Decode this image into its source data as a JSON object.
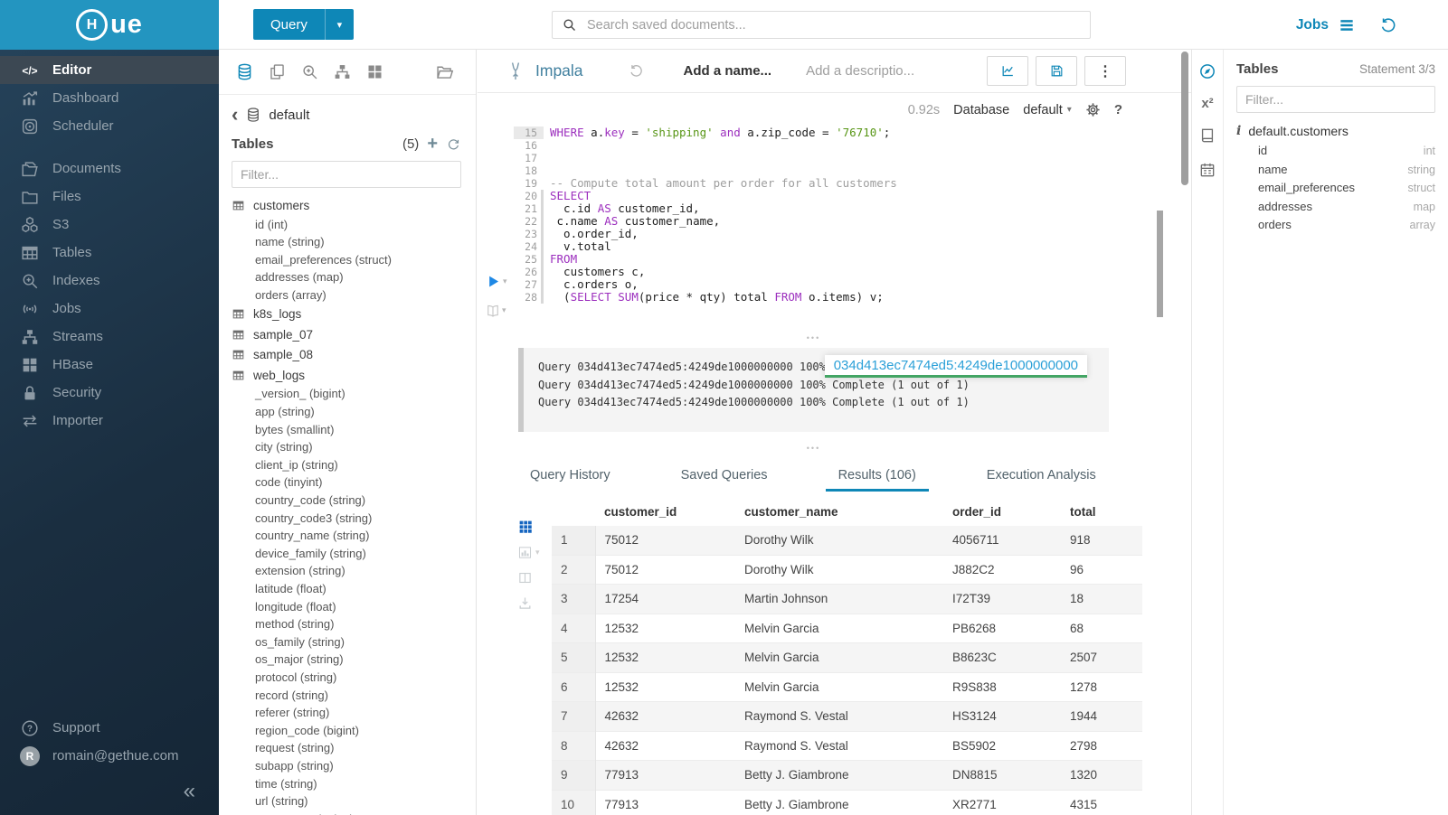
{
  "colors": {
    "accent": "#0e87b7",
    "logo_bar": "#2395c0",
    "sidebar_dark": "#1a2e40",
    "keyword": "#9c2fbe",
    "string": "#589616",
    "comment": "#9e9e9e",
    "link_blue": "#2ba0d8",
    "link_underline_green": "#43a564",
    "execute_blue": "#1e88e5"
  },
  "topbar": {
    "query_button": "Query",
    "search_placeholder": "Search saved documents...",
    "jobs_label": "Jobs"
  },
  "sidebar": {
    "items": [
      {
        "label": "Editor",
        "icon": "code",
        "active": true
      },
      {
        "label": "Dashboard",
        "icon": "dashboard"
      },
      {
        "label": "Scheduler",
        "icon": "scheduler"
      },
      {
        "label": "Documents",
        "icon": "documents",
        "gap": true
      },
      {
        "label": "Files",
        "icon": "folder"
      },
      {
        "label": "S3",
        "icon": "cubes"
      },
      {
        "label": "Tables",
        "icon": "tablegrid"
      },
      {
        "label": "Indexes",
        "icon": "searchplus"
      },
      {
        "label": "Jobs",
        "icon": "signal"
      },
      {
        "label": "Streams",
        "icon": "sitemap"
      },
      {
        "label": "HBase",
        "icon": "squares"
      },
      {
        "label": "Security",
        "icon": "lock"
      },
      {
        "label": "Importer",
        "icon": "swap"
      }
    ],
    "support_label": "Support",
    "user_email": "romain@gethue.com",
    "user_initial": "R"
  },
  "left_assist": {
    "database": "default",
    "tables_label": "Tables",
    "tables_count": "(5)",
    "filter_placeholder": "Filter...",
    "tables": [
      {
        "name": "customers",
        "columns": [
          "id (int)",
          "name (string)",
          "email_preferences (struct)",
          "addresses (map)",
          "orders (array)"
        ]
      },
      {
        "name": "k8s_logs",
        "columns": []
      },
      {
        "name": "sample_07",
        "columns": []
      },
      {
        "name": "sample_08",
        "columns": []
      },
      {
        "name": "web_logs",
        "columns": [
          "_version_ (bigint)",
          "app (string)",
          "bytes (smallint)",
          "city (string)",
          "client_ip (string)",
          "code (tinyint)",
          "country_code (string)",
          "country_code3 (string)",
          "country_name (string)",
          "device_family (string)",
          "extension (string)",
          "latitude (float)",
          "longitude (float)",
          "method (string)",
          "os_family (string)",
          "os_major (string)",
          "protocol (string)",
          "record (string)",
          "referer (string)",
          "region_code (bigint)",
          "request (string)",
          "subapp (string)",
          "time (string)",
          "url (string)",
          "user_agent (string)"
        ]
      }
    ]
  },
  "editor": {
    "engine": "Impala",
    "name_placeholder": "Add a name...",
    "description_placeholder": "Add a descriptio...",
    "exec_time": "0.92s",
    "database_label": "Database",
    "database_value": "default",
    "code_lines": [
      {
        "n": 15,
        "active": true,
        "segs": [
          [
            "kw",
            "WHERE"
          ],
          [
            "id",
            " a."
          ],
          [
            "kw",
            "key"
          ],
          [
            "id",
            " = "
          ],
          [
            "str",
            "'shipping'"
          ],
          [
            "id",
            " "
          ],
          [
            "kw",
            "and"
          ],
          [
            "id",
            " a.zip_code = "
          ],
          [
            "str",
            "'76710'"
          ],
          [
            "id",
            ";"
          ]
        ]
      },
      {
        "n": 16,
        "segs": []
      },
      {
        "n": 17,
        "segs": []
      },
      {
        "n": 18,
        "segs": []
      },
      {
        "n": 19,
        "segs": [
          [
            "com",
            "-- Compute total amount per order for all customers"
          ]
        ]
      },
      {
        "n": 20,
        "stmt": true,
        "segs": [
          [
            "kw",
            "SELECT"
          ]
        ]
      },
      {
        "n": 21,
        "stmt": true,
        "segs": [
          [
            "id",
            "  c.id "
          ],
          [
            "kw",
            "AS"
          ],
          [
            "id",
            " customer_id,"
          ]
        ]
      },
      {
        "n": 22,
        "stmt": true,
        "segs": [
          [
            "id",
            " c.name "
          ],
          [
            "kw",
            "AS"
          ],
          [
            "id",
            " customer_name,"
          ]
        ]
      },
      {
        "n": 23,
        "stmt": true,
        "segs": [
          [
            "id",
            "  o.order_id,"
          ]
        ]
      },
      {
        "n": 24,
        "stmt": true,
        "segs": [
          [
            "id",
            "  v.total"
          ]
        ]
      },
      {
        "n": 25,
        "stmt": true,
        "segs": [
          [
            "kw",
            "FROM"
          ]
        ]
      },
      {
        "n": 26,
        "stmt": true,
        "segs": [
          [
            "id",
            "  customers c,"
          ]
        ]
      },
      {
        "n": 27,
        "stmt": true,
        "segs": [
          [
            "id",
            "  c.orders o,"
          ]
        ]
      },
      {
        "n": 28,
        "stmt": true,
        "segs": [
          [
            "id",
            "  ("
          ],
          [
            "kw",
            "SELECT"
          ],
          [
            "id",
            " "
          ],
          [
            "kw",
            "SUM"
          ],
          [
            "id",
            "(price * qty) total "
          ],
          [
            "kw",
            "FROM"
          ],
          [
            "id",
            " o.items) v;"
          ]
        ]
      }
    ]
  },
  "log": {
    "lines": [
      "Query 034d413ec7474ed5:4249de1000000000 100% Complete (1 out of 1)",
      "Query 034d413ec7474ed5:4249de1000000000 100% Complete (1 out of 1)",
      "Query 034d413ec7474ed5:4249de1000000000 100% Complete (1 out of 1)"
    ],
    "query_id_link": "034d413ec7474ed5:4249de1000000000"
  },
  "tabs": [
    {
      "label": "Query History"
    },
    {
      "label": "Saved Queries"
    },
    {
      "label": "Results (106)",
      "active": true
    },
    {
      "label": "Execution Analysis"
    }
  ],
  "results": {
    "columns": [
      "customer_id",
      "customer_name",
      "order_id",
      "total"
    ],
    "rows": [
      [
        "75012",
        "Dorothy Wilk",
        "4056711",
        "918"
      ],
      [
        "75012",
        "Dorothy Wilk",
        "J882C2",
        "96"
      ],
      [
        "17254",
        "Martin Johnson",
        "I72T39",
        "18"
      ],
      [
        "12532",
        "Melvin Garcia",
        "PB6268",
        "68"
      ],
      [
        "12532",
        "Melvin Garcia",
        "B8623C",
        "2507"
      ],
      [
        "12532",
        "Melvin Garcia",
        "R9S838",
        "1278"
      ],
      [
        "42632",
        "Raymond S. Vestal",
        "HS3124",
        "1944"
      ],
      [
        "42632",
        "Raymond S. Vestal",
        "BS5902",
        "2798"
      ],
      [
        "77913",
        "Betty J. Giambrone",
        "DN8815",
        "1320"
      ],
      [
        "77913",
        "Betty J. Giambrone",
        "XR2771",
        "4315"
      ]
    ]
  },
  "right_panel": {
    "title": "Tables",
    "statement": "Statement 3/3",
    "filter_placeholder": "Filter...",
    "table_name": "default.customers",
    "columns": [
      {
        "name": "id",
        "type": "int"
      },
      {
        "name": "name",
        "type": "string"
      },
      {
        "name": "email_preferences",
        "type": "struct"
      },
      {
        "name": "addresses",
        "type": "map"
      },
      {
        "name": "orders",
        "type": "array"
      }
    ]
  }
}
